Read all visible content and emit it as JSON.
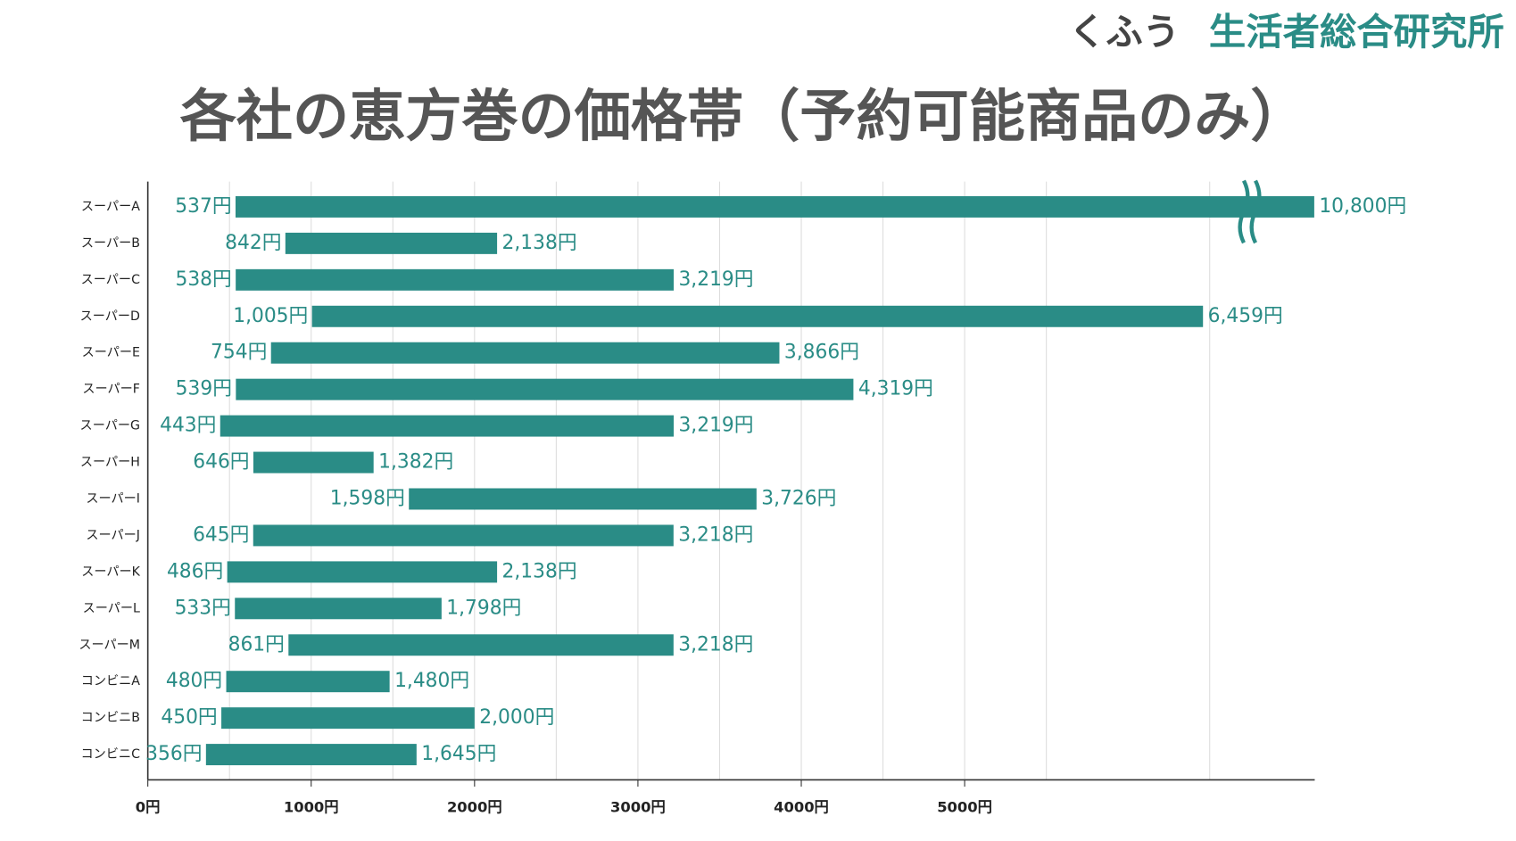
{
  "brand": {
    "prefix": "くふう",
    "name": "生活者総合研究所"
  },
  "chart_data": {
    "type": "range_bar",
    "title": "各社の恵方巻の価格帯（予約可能商品のみ）",
    "categories": [
      "スーパーA",
      "スーパーB",
      "スーパーC",
      "スーパーD",
      "スーパーE",
      "スーパーF",
      "スーパーG",
      "スーパーH",
      "スーパーI",
      "スーパーJ",
      "スーパーK",
      "スーパーL",
      "スーパーM",
      "コンビニA",
      "コンビニB",
      "コンビニC"
    ],
    "low": [
      537,
      842,
      538,
      1005,
      754,
      539,
      443,
      646,
      1598,
      645,
      486,
      533,
      861,
      480,
      450,
      356
    ],
    "low_labels": [
      "537円",
      "842円",
      "538円",
      "1,005円",
      "754円",
      "539円",
      "443円",
      "646円",
      "1,598円",
      "645円",
      "486円",
      "533円",
      "861円",
      "480円",
      "450円",
      "356円"
    ],
    "high": [
      10800,
      2138,
      3219,
      6459,
      3866,
      4319,
      3219,
      1382,
      3726,
      3218,
      2138,
      1798,
      3218,
      1480,
      2000,
      1645
    ],
    "high_labels": [
      "10,800円",
      "2,138円",
      "3,219円",
      "6,459円",
      "3,866円",
      "4,319円",
      "3,219円",
      "1,382円",
      "3,726円",
      "3,218円",
      "2,138円",
      "1,798円",
      "3,218円",
      "1,480円",
      "2,000円",
      "1,645円"
    ],
    "color": "#2a8c86",
    "xlim": [
      0,
      10803
    ],
    "xbreak": [
      6740,
      10400
    ],
    "xticks": [
      {
        "value": 0,
        "label": "0円"
      },
      {
        "value": 1000,
        "label": "1000円"
      },
      {
        "value": 2000,
        "label": "2000円"
      },
      {
        "value": 3000,
        "label": "3000円"
      },
      {
        "value": 4000,
        "label": "4000円"
      },
      {
        "value": 5000,
        "label": "5000円"
      }
    ],
    "minor_grid": [
      500,
      1500,
      2500,
      3500,
      4500,
      5500,
      6500
    ],
    "grid": true
  }
}
